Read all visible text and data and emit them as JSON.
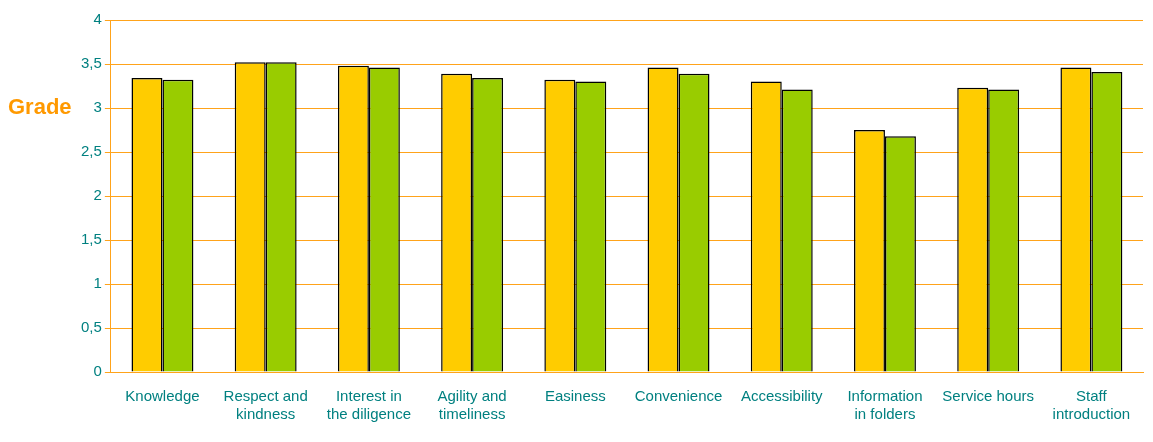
{
  "chart_data": {
    "type": "bar",
    "ylabel": "Grade",
    "categories": [
      "Knowledge",
      "Respect and kindness",
      "Interest in the diligence",
      "Agility and timeliness",
      "Easiness",
      "Convenience",
      "Accessibility",
      "Information in folders",
      "Service hours",
      "Staff introduction"
    ],
    "series": [
      {
        "color": "#ffcc00",
        "values": [
          3.34,
          3.52,
          3.48,
          3.39,
          3.32,
          3.46,
          3.3,
          2.75,
          3.23,
          3.46
        ]
      },
      {
        "color": "#99cc00",
        "values": [
          3.32,
          3.52,
          3.46,
          3.34,
          3.3,
          3.39,
          3.21,
          2.68,
          3.21,
          3.41
        ]
      }
    ],
    "ylim": [
      0,
      4
    ],
    "yticks": [
      0,
      {
        "value": 0.5,
        "label": "0,5"
      },
      1,
      {
        "value": 1.5,
        "label": "1,5"
      },
      2,
      {
        "value": 2.5,
        "label": "2,5"
      },
      3,
      {
        "value": 3.5,
        "label": "3,5"
      },
      4
    ],
    "grid": "y",
    "legend": false
  }
}
